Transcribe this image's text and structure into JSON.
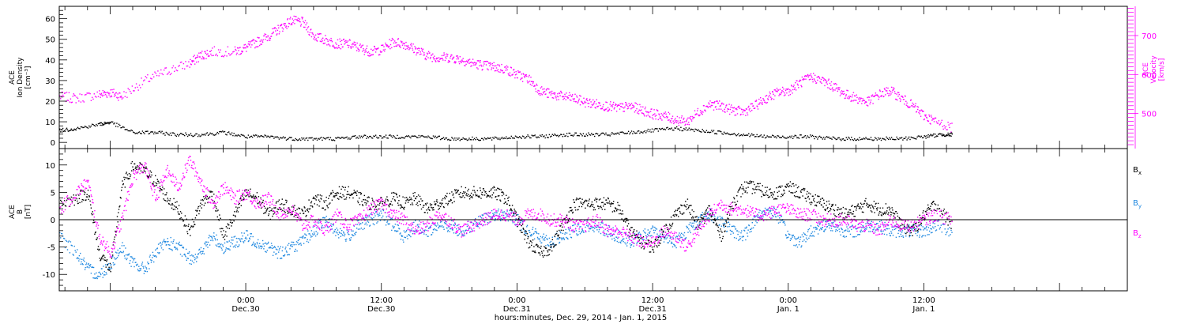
{
  "colors": {
    "black": "#000000",
    "magenta": "#ff00ff",
    "blue": "#1f88e0"
  },
  "chart_data": [
    {
      "type": "scatter",
      "x_domain_hours": [
        -16.5,
        78
      ],
      "x_ticks": [
        {
          "h": 0,
          "time": "0:00",
          "date": "Dec.30"
        },
        {
          "h": 12,
          "time": "12:00",
          "date": "Dec.30"
        },
        {
          "h": 24,
          "time": "0:00",
          "date": "Dec.31"
        },
        {
          "h": 36,
          "time": "12:00",
          "date": "Dec.31"
        },
        {
          "h": 48,
          "time": "0:00",
          "date": "Jan. 1"
        },
        {
          "h": 60,
          "time": "12:00",
          "date": "Jan. 1"
        }
      ],
      "xlabel": "hours:minutes, Dec. 29, 2014 - Jan.  1, 2015",
      "left_axis": {
        "label_lines": [
          "ACE",
          "Ion Density",
          "[cm⁻³]"
        ],
        "ylim": [
          -3,
          66
        ],
        "ticks": [
          0,
          10,
          20,
          30,
          40,
          50,
          60
        ]
      },
      "right_axis": {
        "label_lines": [
          "ACE",
          "Velocity",
          "[km/s]"
        ],
        "ylim": [
          410,
          775
        ],
        "ticks": [
          500,
          600,
          700
        ]
      },
      "series": [
        {
          "axis": "left",
          "color": "#000000",
          "x": [
            -16.5,
            -15,
            -13,
            -12,
            -10,
            -8,
            -6,
            -4,
            -2,
            0,
            2,
            4,
            6,
            8,
            10,
            12,
            14,
            16,
            18,
            20,
            22,
            24,
            26,
            28,
            30,
            32,
            34,
            36,
            38,
            40,
            42,
            44,
            46,
            48,
            50,
            52,
            54,
            56,
            58,
            60,
            61.5,
            62.5
          ],
          "y": [
            6,
            7,
            9,
            10,
            5,
            5,
            4,
            4,
            5,
            3,
            3,
            2,
            2,
            2,
            3,
            3,
            3,
            3,
            2,
            2,
            2,
            3,
            3,
            4,
            4,
            4,
            5,
            6,
            7,
            6,
            5,
            4,
            3,
            3,
            3,
            2,
            2,
            2,
            2,
            3,
            4,
            4
          ]
        },
        {
          "axis": "right",
          "color": "#ff00ff",
          "x": [
            -16.5,
            -15,
            -13,
            -12,
            -11,
            -9,
            -7,
            -5,
            -4,
            -3,
            -1,
            0,
            1,
            2,
            3,
            4,
            5,
            6,
            7,
            8,
            9,
            10,
            11,
            12,
            13,
            14,
            15,
            16,
            17,
            18,
            19,
            20,
            21,
            22,
            23,
            24,
            25,
            26,
            27,
            28,
            29,
            30,
            31,
            32,
            33,
            34,
            35,
            36,
            37,
            38,
            39,
            40,
            41,
            42,
            43,
            44,
            45,
            46,
            47,
            48,
            49,
            50,
            51,
            52,
            53,
            54,
            55,
            56,
            57,
            58,
            59,
            60,
            61,
            62.5
          ],
          "y": [
            545,
            540,
            550,
            555,
            545,
            585,
            610,
            630,
            650,
            660,
            660,
            670,
            685,
            700,
            720,
            740,
            735,
            700,
            690,
            680,
            680,
            670,
            660,
            665,
            685,
            680,
            665,
            650,
            645,
            645,
            640,
            630,
            625,
            620,
            615,
            600,
            590,
            560,
            550,
            545,
            540,
            530,
            525,
            520,
            515,
            520,
            510,
            500,
            495,
            485,
            480,
            505,
            525,
            520,
            510,
            505,
            520,
            540,
            555,
            560,
            580,
            595,
            585,
            570,
            550,
            540,
            530,
            550,
            560,
            540,
            520,
            495,
            480,
            465
          ]
        }
      ]
    },
    {
      "type": "scatter",
      "x_domain_hours": [
        -16.5,
        78
      ],
      "left_axis": {
        "label_lines": [
          "ACE",
          "B",
          "[nT]"
        ],
        "ylim": [
          -13,
          13
        ],
        "ticks": [
          -10,
          -5,
          0,
          5,
          10
        ]
      },
      "legend": [
        "B",
        "B",
        "B"
      ],
      "legend_subscripts": [
        "x",
        "y",
        "z"
      ],
      "series": [
        {
          "name": "B",
          "color": "#000000",
          "x": [
            -16.5,
            -15,
            -14,
            -13,
            -12,
            -11,
            -10,
            -9,
            -8,
            -7,
            -6,
            -5,
            -4,
            -3,
            -2,
            -1,
            0,
            1,
            2,
            3,
            4,
            5,
            6,
            7,
            8,
            9,
            10,
            11,
            12,
            13,
            14,
            15,
            16,
            17,
            18,
            19,
            20,
            21,
            22,
            23,
            24,
            25,
            26,
            27,
            28,
            29,
            30,
            31,
            32,
            33,
            34,
            35,
            36,
            37,
            38,
            39,
            40,
            41,
            42,
            43,
            44,
            45,
            46,
            47,
            48,
            49,
            50,
            51,
            52,
            53,
            54,
            55,
            56,
            57,
            58,
            59,
            60,
            61,
            62.5
          ],
          "y": [
            3,
            4,
            5,
            -6,
            -9,
            6,
            10,
            9,
            7,
            4,
            2,
            -2,
            3,
            5,
            -3,
            1,
            5,
            4,
            1,
            3,
            2,
            1,
            4,
            3,
            5,
            5,
            4,
            3,
            3,
            4,
            3,
            4,
            2,
            3,
            4,
            5,
            5,
            5,
            5,
            4,
            0,
            -4,
            -6,
            -5,
            -1,
            3,
            3,
            3,
            3,
            2,
            -2,
            -4,
            -5,
            -2,
            1,
            3,
            -1,
            2,
            -3,
            3,
            6,
            6,
            5,
            5,
            6,
            5,
            4,
            3,
            2,
            1,
            2,
            3,
            2,
            2,
            -1,
            -2,
            1,
            3,
            -1
          ]
        },
        {
          "name": "B",
          "color": "#1f88e0",
          "x": [
            -16.5,
            -15,
            -14,
            -13,
            -12,
            -11,
            -10,
            -9,
            -8,
            -7,
            -6,
            -5,
            -4,
            -3,
            -2,
            -1,
            0,
            1,
            2,
            3,
            4,
            5,
            6,
            7,
            8,
            9,
            10,
            11,
            12,
            13,
            14,
            15,
            16,
            17,
            18,
            19,
            20,
            21,
            22,
            23,
            24,
            25,
            26,
            27,
            28,
            29,
            30,
            31,
            32,
            33,
            34,
            35,
            36,
            37,
            38,
            39,
            40,
            41,
            42,
            43,
            44,
            45,
            46,
            47,
            48,
            49,
            50,
            51,
            52,
            53,
            54,
            55,
            56,
            57,
            58,
            59,
            60,
            61,
            62.5
          ],
          "y": [
            -3,
            -6,
            -9,
            -10,
            -8,
            -5,
            -8,
            -9,
            -6,
            -4,
            -5,
            -7,
            -6,
            -3,
            -5,
            -4,
            -3,
            -4,
            -5,
            -6,
            -5,
            -4,
            -2,
            0,
            -2,
            -3,
            -1,
            0,
            1,
            -1,
            -3,
            -1,
            -2,
            -1,
            -1,
            -2,
            -1,
            0,
            1,
            1,
            0,
            -2,
            -3,
            -4,
            -3,
            -2,
            -1,
            -1,
            -2,
            -3,
            -4,
            -3,
            -2,
            -3,
            -4,
            -2,
            0,
            1,
            0,
            -2,
            -3,
            0,
            2,
            1,
            -3,
            -4,
            -2,
            -1,
            -1,
            -2,
            -2,
            -1,
            -1,
            -2,
            -2,
            -2,
            -2,
            -1,
            -2
          ]
        },
        {
          "name": "B",
          "color": "#ff00ff",
          "x": [
            -16.5,
            -15,
            -14,
            -13,
            -12,
            -11,
            -10,
            -9,
            -8,
            -7,
            -6,
            -5,
            -4,
            -3,
            -2,
            -1,
            0,
            1,
            2,
            3,
            4,
            5,
            6,
            7,
            8,
            9,
            10,
            11,
            12,
            13,
            14,
            15,
            16,
            17,
            18,
            19,
            20,
            21,
            22,
            23,
            24,
            25,
            26,
            27,
            28,
            29,
            30,
            31,
            32,
            33,
            34,
            35,
            36,
            37,
            38,
            39,
            40,
            41,
            42,
            43,
            44,
            45,
            46,
            47,
            48,
            49,
            50,
            51,
            52,
            53,
            54,
            55,
            56,
            57,
            58,
            59,
            60,
            61,
            62.5
          ],
          "y": [
            2,
            5,
            7,
            -3,
            -6,
            0,
            8,
            10,
            4,
            9,
            6,
            11,
            7,
            3,
            6,
            4,
            5,
            3,
            4,
            1,
            2,
            -1,
            0,
            -2,
            1,
            -1,
            0,
            2,
            3,
            1,
            0,
            -2,
            -1,
            1,
            0,
            -2,
            -1,
            0,
            1,
            1,
            0,
            1,
            1,
            0,
            0,
            -1,
            -1,
            0,
            -2,
            -2,
            -3,
            -4,
            -4,
            -2,
            -3,
            -5,
            -2,
            1,
            3,
            2,
            2,
            1,
            1,
            2,
            2,
            1,
            1,
            0,
            0,
            0,
            -1,
            -1,
            -2,
            0,
            -1,
            -1,
            0,
            1,
            0
          ]
        }
      ]
    }
  ]
}
